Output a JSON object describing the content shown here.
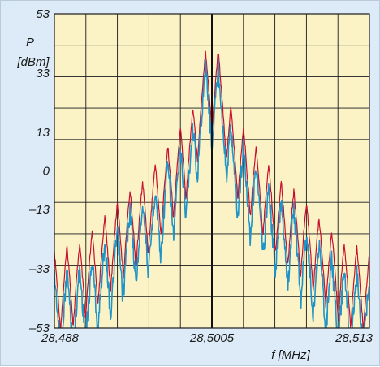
{
  "chart_data": {
    "type": "line",
    "title": "",
    "ylabel": "P",
    "yunit": "[dBm]",
    "xlabel": "f [MHz]",
    "ylim": [
      -53,
      53
    ],
    "xlim": [
      28.488,
      28.513
    ],
    "y_ticks": [
      "53",
      "33",
      "13",
      "0",
      "–13",
      "–33",
      "–53"
    ],
    "y_tick_values": [
      53,
      33,
      13,
      0,
      -13,
      -33,
      -53
    ],
    "x_ticks": [
      "28,488",
      "28,5005",
      "28,513"
    ],
    "x_tick_values": [
      28.488,
      28.5005,
      28.513
    ],
    "grid": true,
    "center_line": 28.5005,
    "series": [
      {
        "color": "#c8102e",
        "peak_spacing_mhz": 0.001,
        "peaks": [
          [
            -12,
            -27
          ],
          [
            -11,
            -25
          ],
          [
            -10,
            -24
          ],
          [
            -9,
            -20
          ],
          [
            -8,
            -15
          ],
          [
            -7,
            -10
          ],
          [
            -6,
            -6
          ],
          [
            -5,
            -3
          ],
          [
            -4,
            3
          ],
          [
            -3,
            9
          ],
          [
            -2,
            15
          ],
          [
            -1,
            22
          ],
          [
            0,
            41
          ],
          [
            1,
            41
          ],
          [
            2,
            22
          ],
          [
            3,
            15
          ],
          [
            4,
            9
          ],
          [
            5,
            3
          ],
          [
            6,
            -3
          ],
          [
            7,
            -6
          ],
          [
            8,
            -10
          ],
          [
            9,
            -15
          ],
          [
            10,
            -20
          ],
          [
            11,
            -24
          ],
          [
            12,
            -25
          ],
          [
            13,
            -27
          ]
        ]
      },
      {
        "color": "#1e94c8",
        "peak_spacing_mhz": 0.001,
        "peaks": [
          [
            -12,
            -32
          ],
          [
            -11,
            -31
          ],
          [
            -10,
            -30
          ],
          [
            -9,
            -27
          ],
          [
            -8,
            -21
          ],
          [
            -7,
            -17
          ],
          [
            -6,
            -10
          ],
          [
            -5,
            -7
          ],
          [
            -4,
            -3
          ],
          [
            -3,
            5
          ],
          [
            -2,
            11
          ],
          [
            -1,
            18
          ],
          [
            0,
            38
          ],
          [
            1,
            38
          ],
          [
            2,
            18
          ],
          [
            3,
            11
          ],
          [
            4,
            5
          ],
          [
            5,
            -3
          ],
          [
            6,
            -7
          ],
          [
            7,
            -10
          ],
          [
            8,
            -17
          ],
          [
            9,
            -21
          ],
          [
            10,
            -27
          ],
          [
            11,
            -30
          ],
          [
            12,
            -31
          ],
          [
            13,
            -32
          ]
        ]
      }
    ],
    "colors": {
      "plot_bg": "#fbf3c6",
      "frame_bg": "#dcebf7",
      "grid": "#1a1a1a"
    }
  }
}
